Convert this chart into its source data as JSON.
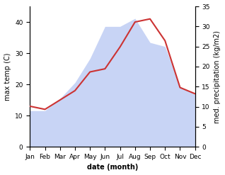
{
  "months": [
    "Jan",
    "Feb",
    "Mar",
    "Apr",
    "May",
    "Jun",
    "Jul",
    "Aug",
    "Sep",
    "Oct",
    "Nov",
    "Dec"
  ],
  "temp_values": [
    13,
    12,
    15,
    18,
    24,
    25,
    32,
    40,
    41,
    34,
    19,
    17
  ],
  "rain_values": [
    9,
    9,
    12,
    16,
    22,
    30,
    30,
    32,
    26,
    25,
    15,
    13
  ],
  "temp_ylim": [
    0,
    45
  ],
  "precip_ylim": [
    0,
    35
  ],
  "temp_yticks": [
    0,
    10,
    20,
    30,
    40
  ],
  "precip_yticks": [
    0,
    5,
    10,
    15,
    20,
    25,
    30,
    35
  ],
  "line_color": "#cc3333",
  "fill_color": "#c8d4f5",
  "fill_alpha": 1.0,
  "ylabel_left": "max temp (C)",
  "ylabel_right": "med. precipitation (kg/m2)",
  "xlabel": "date (month)",
  "bg_color": "#ffffff",
  "line_width": 1.5,
  "label_fontsize": 7,
  "tick_fontsize": 6.5
}
